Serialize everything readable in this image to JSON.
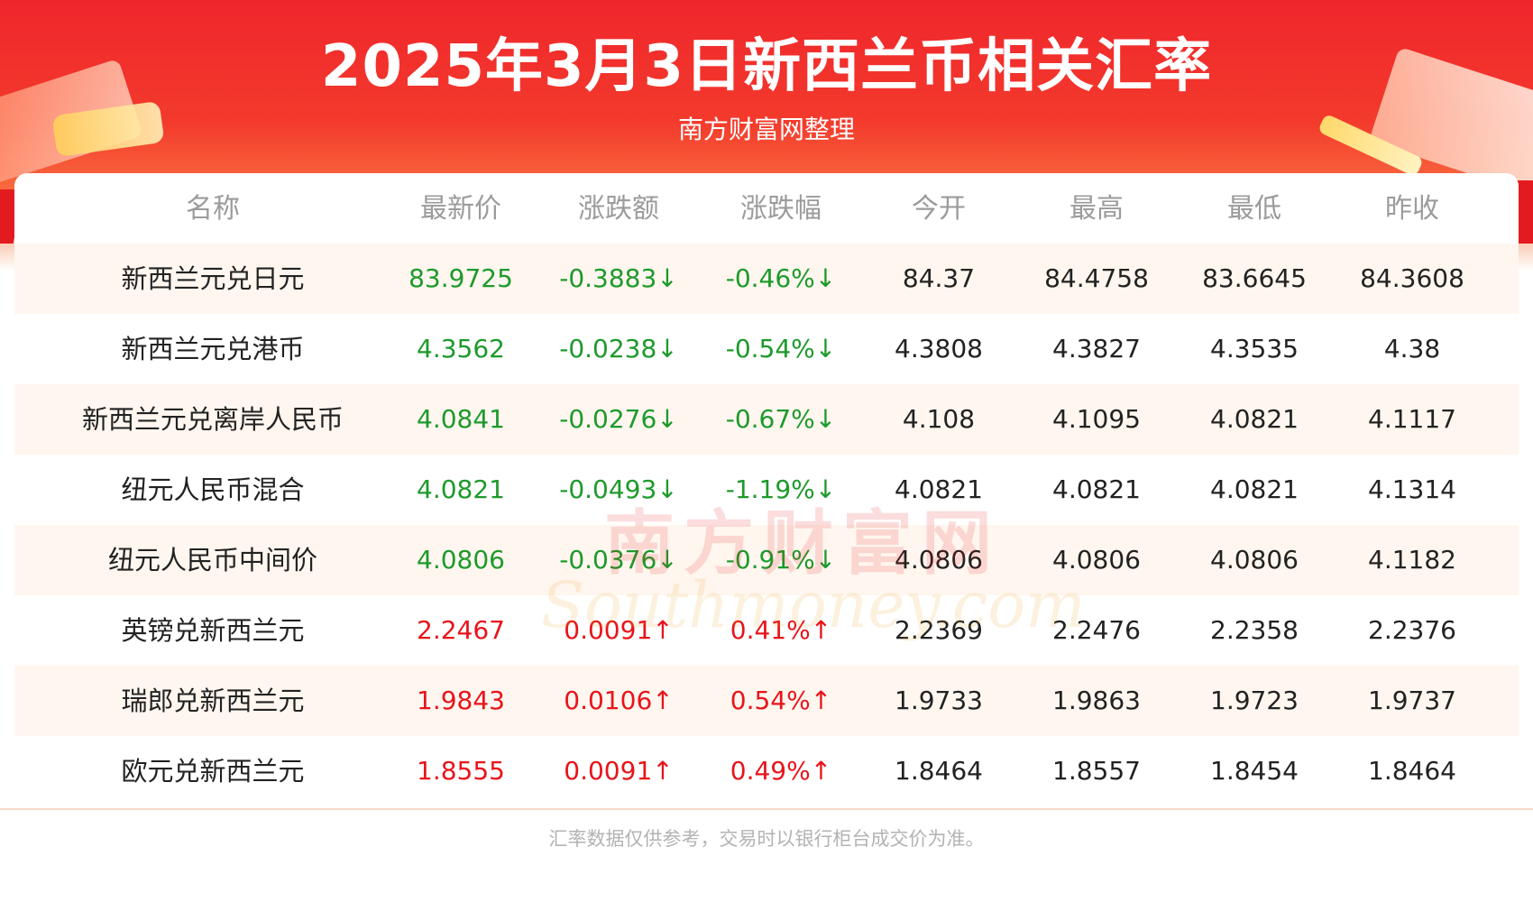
{
  "header": {
    "title": "2025年3月3日新西兰币相关汇率",
    "subtitle": "南方财富网整理"
  },
  "table": {
    "columns": [
      "名称",
      "最新价",
      "涨跌额",
      "涨跌幅",
      "今开",
      "最高",
      "最低",
      "昨收"
    ],
    "rows": [
      {
        "name": "新西兰元兑日元",
        "latest": "83.9725",
        "change": "-0.3883↓",
        "pct": "-0.46%↓",
        "open": "84.37",
        "high": "84.4758",
        "low": "83.6645",
        "prev": "84.3608",
        "direction": "down"
      },
      {
        "name": "新西兰元兑港币",
        "latest": "4.3562",
        "change": "-0.0238↓",
        "pct": "-0.54%↓",
        "open": "4.3808",
        "high": "4.3827",
        "low": "4.3535",
        "prev": "4.38",
        "direction": "down"
      },
      {
        "name": "新西兰元兑离岸人民币",
        "latest": "4.0841",
        "change": "-0.0276↓",
        "pct": "-0.67%↓",
        "open": "4.108",
        "high": "4.1095",
        "low": "4.0821",
        "prev": "4.1117",
        "direction": "down"
      },
      {
        "name": "纽元人民币混合",
        "latest": "4.0821",
        "change": "-0.0493↓",
        "pct": "-1.19%↓",
        "open": "4.0821",
        "high": "4.0821",
        "low": "4.0821",
        "prev": "4.1314",
        "direction": "down"
      },
      {
        "name": "纽元人民币中间价",
        "latest": "4.0806",
        "change": "-0.0376↓",
        "pct": "-0.91%↓",
        "open": "4.0806",
        "high": "4.0806",
        "low": "4.0806",
        "prev": "4.1182",
        "direction": "down"
      },
      {
        "name": "英镑兑新西兰元",
        "latest": "2.2467",
        "change": "0.0091↑",
        "pct": "0.41%↑",
        "open": "2.2369",
        "high": "2.2476",
        "low": "2.2358",
        "prev": "2.2376",
        "direction": "up"
      },
      {
        "name": "瑞郎兑新西兰元",
        "latest": "1.9843",
        "change": "0.0106↑",
        "pct": "0.54%↑",
        "open": "1.9733",
        "high": "1.9863",
        "low": "1.9723",
        "prev": "1.9737",
        "direction": "up"
      },
      {
        "name": "欧元兑新西兰元",
        "latest": "1.8555",
        "change": "0.0091↑",
        "pct": "0.49%↑",
        "open": "1.8464",
        "high": "1.8557",
        "low": "1.8454",
        "prev": "1.8464",
        "direction": "up"
      }
    ]
  },
  "watermark": {
    "cn": "南方财富网",
    "en": "Southmoney.com"
  },
  "footer": {
    "note": "汇率数据仅供参考，交易时以银行柜台成交价为准。"
  },
  "colors": {
    "banner_red": "#f0262c",
    "down_green": "#1d9a2b",
    "up_red": "#e8141b",
    "alt_row": "#fff6ef",
    "header_text": "#9b9b9b"
  }
}
